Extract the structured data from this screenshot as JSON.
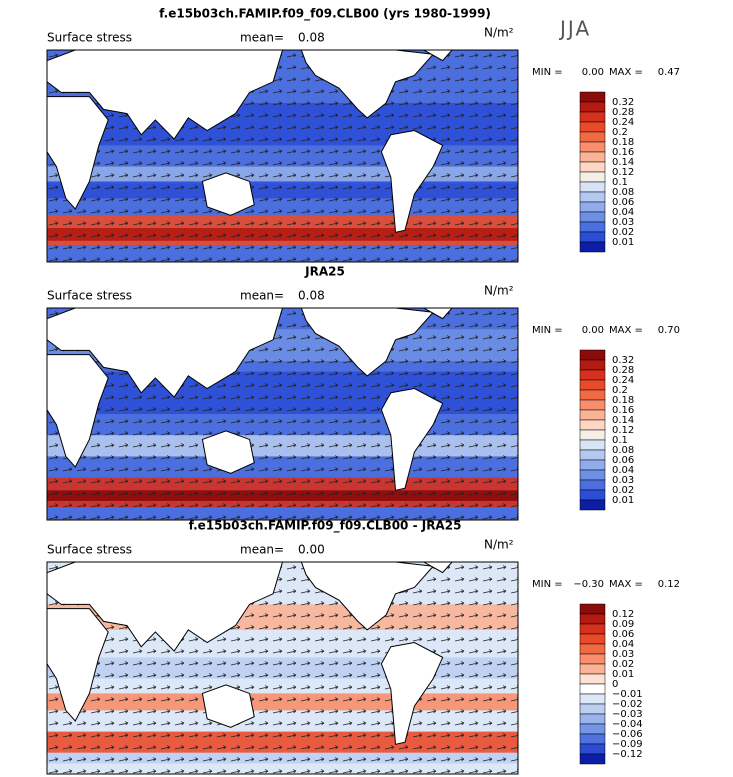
{
  "panels": [
    {
      "title": "f.e15b03ch.FAMIP.f09_f09.CLB00 (yrs 1980-1999)",
      "label": "Surface stress",
      "mean_label": "mean=",
      "mean": "0.08",
      "units": "N/m²",
      "season": "JJA",
      "min_label": "MIN =",
      "min": "0.00",
      "max_label": "MAX =",
      "max": "0.47",
      "colorbar": {
        "levels": [
          "0.32",
          "0.28",
          "0.24",
          "0.2",
          "0.18",
          "0.16",
          "0.14",
          "0.12",
          "0.1",
          "0.08",
          "0.06",
          "0.04",
          "0.03",
          "0.02",
          "0.01"
        ],
        "colors": [
          "#8b0a0a",
          "#b31b12",
          "#d7301f",
          "#ea4a2a",
          "#f26a44",
          "#f88e6c",
          "#fbb396",
          "#fdd7c4",
          "#f6efe8",
          "#d8e3f6",
          "#b4c9f1",
          "#90acea",
          "#6d8fe4",
          "#4b6fde",
          "#2c4ed6",
          "#0c1da8"
        ]
      }
    },
    {
      "title": "JRA25",
      "label": "Surface stress",
      "mean_label": "mean=",
      "mean": "0.08",
      "units": "N/m²",
      "min_label": "MIN =",
      "min": "0.00",
      "max_label": "MAX =",
      "max": "0.70",
      "colorbar": {
        "levels": [
          "0.32",
          "0.28",
          "0.24",
          "0.2",
          "0.18",
          "0.16",
          "0.14",
          "0.12",
          "0.1",
          "0.08",
          "0.06",
          "0.04",
          "0.03",
          "0.02",
          "0.01"
        ],
        "colors": [
          "#8b0a0a",
          "#b31b12",
          "#d7301f",
          "#ea4a2a",
          "#f26a44",
          "#f88e6c",
          "#fbb396",
          "#fdd7c4",
          "#f6efe8",
          "#d8e3f6",
          "#b4c9f1",
          "#90acea",
          "#6d8fe4",
          "#4b6fde",
          "#2c4ed6",
          "#0c1da8"
        ]
      }
    },
    {
      "title": "f.e15b03ch.FAMIP.f09_f09.CLB00 - JRA25",
      "label": "Surface stress",
      "mean_label": "mean=",
      "mean": "0.00",
      "units": "N/m²",
      "min_label": "MIN =",
      "min": "−0.30",
      "max_label": "MAX =",
      "max": "0.12",
      "colorbar": {
        "levels": [
          "0.12",
          "0.09",
          "0.06",
          "0.04",
          "0.03",
          "0.02",
          "0.01",
          "0",
          "−0.01",
          "−0.02",
          "−0.03",
          "−0.04",
          "−0.06",
          "−0.09",
          "−0.12"
        ],
        "colors": [
          "#8b0a0a",
          "#b31b12",
          "#d7301f",
          "#ea4a2a",
          "#f26a44",
          "#f88e6c",
          "#fbb396",
          "#fde1d3",
          "#ffffff",
          "#dce7f8",
          "#bccff3",
          "#99b3ec",
          "#7595e6",
          "#4f72df",
          "#2a4bd2",
          "#0c1da8"
        ]
      }
    }
  ]
}
